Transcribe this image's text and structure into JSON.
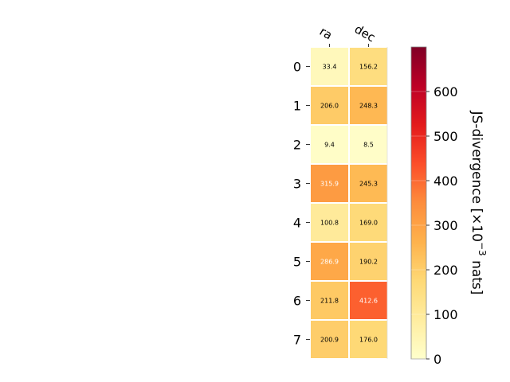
{
  "chart_data": {
    "type": "heatmap",
    "columns": [
      "ra",
      "dec"
    ],
    "rows": [
      "0",
      "1",
      "2",
      "3",
      "4",
      "5",
      "6",
      "7"
    ],
    "values": [
      [
        33.4,
        156.2
      ],
      [
        206.0,
        248.3
      ],
      [
        9.4,
        8.5
      ],
      [
        315.9,
        245.3
      ],
      [
        100.8,
        169.0
      ],
      [
        286.9,
        190.2
      ],
      [
        211.8,
        412.6
      ],
      [
        200.9,
        176.0
      ]
    ],
    "value_labels": [
      [
        "33.4",
        "156.2"
      ],
      [
        "206.0",
        "248.3"
      ],
      [
        "9.4",
        "8.5"
      ],
      [
        "315.9",
        "245.3"
      ],
      [
        "100.8",
        "169.0"
      ],
      [
        "286.9",
        "190.2"
      ],
      [
        "211.8",
        "412.6"
      ],
      [
        "200.9",
        "176.0"
      ]
    ],
    "colorbar": {
      "label": "JS-divergence [×10",
      "label_exponent": "−3",
      "label_suffix": " nats]",
      "range": [
        0,
        700
      ],
      "ticks": [
        "0",
        "100",
        "200",
        "300",
        "400",
        "500",
        "600"
      ],
      "colormap": "YlOrRd"
    },
    "grid": false
  }
}
